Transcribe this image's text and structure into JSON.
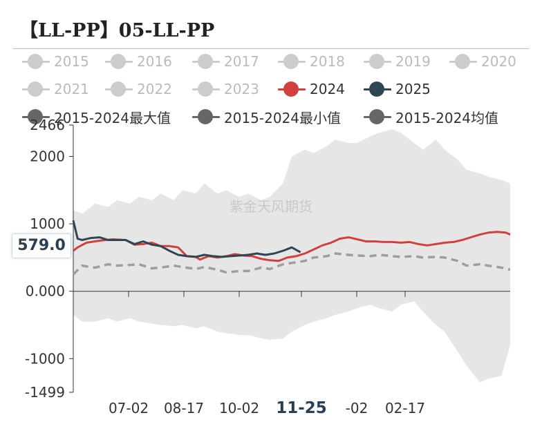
{
  "title": "【LL-PP】05-LL-PP",
  "watermark": "紫金天风期货",
  "legend": [
    {
      "label": "2015",
      "color": "#cccccc",
      "active": false
    },
    {
      "label": "2016",
      "color": "#cccccc",
      "active": false
    },
    {
      "label": "2017",
      "color": "#cccccc",
      "active": false
    },
    {
      "label": "2018",
      "color": "#cccccc",
      "active": false
    },
    {
      "label": "2019",
      "color": "#cccccc",
      "active": false
    },
    {
      "label": "2020",
      "color": "#cccccc",
      "active": false
    },
    {
      "label": "2021",
      "color": "#cccccc",
      "active": false
    },
    {
      "label": "2022",
      "color": "#cccccc",
      "active": false
    },
    {
      "label": "2023",
      "color": "#cccccc",
      "active": false
    },
    {
      "label": "2024",
      "color": "#d23f3f",
      "active": true
    },
    {
      "label": "2025",
      "color": "#2f4554",
      "active": true
    },
    {
      "label": "2015-2024最大值",
      "color": "#666666",
      "active": true
    },
    {
      "label": "2015-2024最小值",
      "color": "#666666",
      "active": true
    },
    {
      "label": "2015-2024均值",
      "color": "#666666",
      "active": true
    }
  ],
  "pointer": {
    "y_value": "579.0",
    "x_value": "11-25"
  },
  "chart_data": {
    "type": "line",
    "title": "【LL-PP】05-LL-PP",
    "ylim": [
      -1499,
      2466
    ],
    "yticks": [
      "2466",
      "2000",
      "1000",
      "0.000",
      "-1000",
      "-1499"
    ],
    "xticks": [
      "07-02",
      "08-17",
      "10-02",
      "11-25",
      "-02",
      "02-17"
    ],
    "grid": false,
    "legend_position": "top",
    "band": {
      "name": "2015-2024最大值 / 2015-2024最小值",
      "x": [
        0,
        0.02,
        0.05,
        0.08,
        0.1,
        0.13,
        0.15,
        0.18,
        0.2,
        0.23,
        0.25,
        0.28,
        0.3,
        0.33,
        0.35,
        0.38,
        0.4,
        0.43,
        0.45,
        0.48,
        0.5,
        0.53,
        0.55,
        0.58,
        0.6,
        0.63,
        0.65,
        0.68,
        0.7,
        0.73,
        0.75,
        0.78,
        0.8,
        0.83,
        0.85,
        0.88,
        0.9,
        0.93,
        0.95,
        0.98,
        1.0
      ],
      "max": [
        1200,
        1150,
        1300,
        1250,
        1350,
        1300,
        1400,
        1350,
        1450,
        1350,
        1500,
        1450,
        1600,
        1450,
        1500,
        1400,
        1450,
        1350,
        1400,
        1600,
        2000,
        2100,
        2050,
        2150,
        2250,
        2200,
        2200,
        2300,
        2350,
        2400,
        2350,
        2200,
        2100,
        2250,
        2100,
        1950,
        1800,
        1750,
        1700,
        1650,
        1600
      ],
      "min": [
        -350,
        -450,
        -450,
        -400,
        -450,
        -400,
        -450,
        -480,
        -500,
        -520,
        -500,
        -550,
        -520,
        -600,
        -620,
        -650,
        -650,
        -700,
        -720,
        -700,
        -600,
        -500,
        -450,
        -400,
        -350,
        -300,
        -250,
        -200,
        -250,
        -300,
        -200,
        -150,
        -300,
        -500,
        -600,
        -900,
        -1100,
        -1350,
        -1300,
        -1250,
        -800
      ]
    },
    "series": [
      {
        "name": "2024",
        "color": "#d23f3f",
        "x": [
          0,
          0.01,
          0.03,
          0.06,
          0.09,
          0.12,
          0.14,
          0.16,
          0.18,
          0.2,
          0.22,
          0.24,
          0.26,
          0.28,
          0.29,
          0.31,
          0.33,
          0.35,
          0.37,
          0.39,
          0.41,
          0.43,
          0.45,
          0.47,
          0.49,
          0.51,
          0.53,
          0.55,
          0.57,
          0.59,
          0.61,
          0.63,
          0.65,
          0.67,
          0.69,
          0.71,
          0.73,
          0.75,
          0.77,
          0.79,
          0.81,
          0.83,
          0.85,
          0.87,
          0.89,
          0.91,
          0.93,
          0.95,
          0.97,
          0.99,
          1.0
        ],
        "y": [
          600,
          650,
          720,
          750,
          770,
          760,
          690,
          700,
          720,
          670,
          670,
          650,
          520,
          510,
          470,
          520,
          500,
          520,
          550,
          530,
          520,
          480,
          460,
          450,
          500,
          520,
          560,
          620,
          680,
          720,
          780,
          800,
          770,
          740,
          740,
          730,
          730,
          720,
          730,
          700,
          680,
          700,
          720,
          730,
          760,
          800,
          840,
          870,
          880,
          870,
          840
        ]
      },
      {
        "name": "2025",
        "color": "#2f4554",
        "x": [
          0,
          0.01,
          0.02,
          0.04,
          0.06,
          0.08,
          0.1,
          0.12,
          0.14,
          0.16,
          0.18,
          0.2,
          0.22,
          0.24,
          0.26,
          0.28,
          0.3,
          0.32,
          0.34,
          0.36,
          0.38,
          0.4,
          0.42,
          0.44,
          0.46,
          0.48,
          0.5,
          0.52
        ],
        "y": [
          1050,
          780,
          760,
          790,
          800,
          760,
          760,
          760,
          700,
          740,
          690,
          670,
          600,
          540,
          520,
          510,
          540,
          520,
          510,
          520,
          530,
          540,
          560,
          540,
          560,
          600,
          650,
          579
        ]
      },
      {
        "name": "2015-2024均值",
        "color": "#9e9e9e",
        "dashed": true,
        "x": [
          0,
          0.02,
          0.05,
          0.08,
          0.1,
          0.13,
          0.15,
          0.18,
          0.2,
          0.23,
          0.25,
          0.28,
          0.3,
          0.33,
          0.35,
          0.38,
          0.4,
          0.43,
          0.45,
          0.48,
          0.5,
          0.53,
          0.55,
          0.58,
          0.6,
          0.63,
          0.65,
          0.68,
          0.7,
          0.73,
          0.75,
          0.78,
          0.8,
          0.83,
          0.85,
          0.88,
          0.9,
          0.93,
          0.95,
          0.98,
          1.0
        ],
        "y": [
          250,
          380,
          350,
          400,
          380,
          390,
          400,
          340,
          350,
          380,
          360,
          330,
          360,
          320,
          280,
          300,
          300,
          350,
          330,
          400,
          420,
          450,
          500,
          520,
          560,
          540,
          530,
          520,
          540,
          520,
          510,
          520,
          500,
          510,
          500,
          450,
          380,
          400,
          380,
          350,
          320
        ]
      }
    ]
  }
}
